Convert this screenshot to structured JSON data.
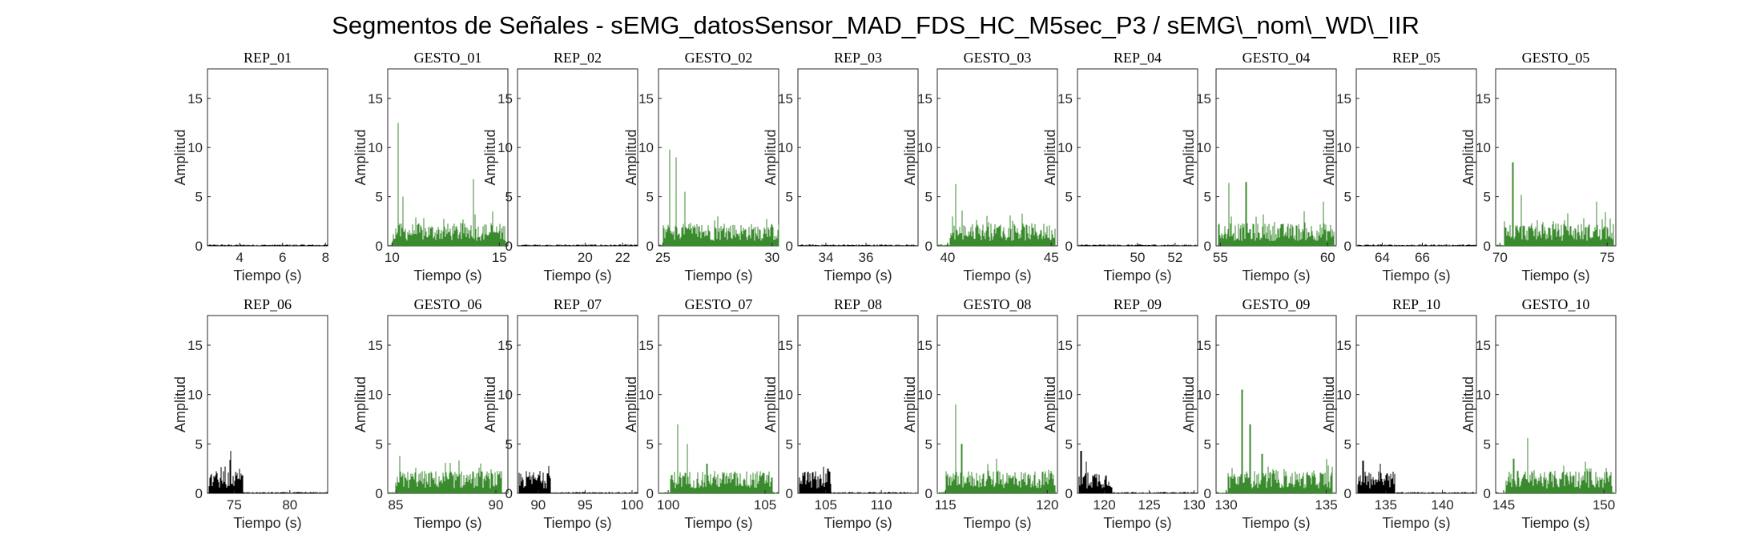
{
  "figure": {
    "title": "Segmentos de Señales - sEMG_datosSensor_MAD_FDS_HC_M5sec_P3 / sEMG\\_nom\\_WD\\_IIR"
  },
  "colors": {
    "gesture": "#3a8a2e",
    "rest": "#000000",
    "axis": "#262626"
  },
  "chart_data": [
    {
      "type": "bar",
      "title": "REP_01",
      "xlabel": "Tiempo (s)",
      "ylabel": "Amplitud",
      "xlim": [
        2.5,
        8.1
      ],
      "ylim": [
        0,
        18
      ],
      "xticks": [
        4,
        6,
        8
      ],
      "yticks": [
        0,
        5,
        10,
        15
      ],
      "color": "rest",
      "burst": null,
      "peaks": [],
      "active": false
    },
    {
      "type": "bar",
      "title": "GESTO_01",
      "xlabel": "Tiempo (s)",
      "ylabel": "Amplitud",
      "xlim": [
        9.8,
        15.4
      ],
      "ylim": [
        0,
        18
      ],
      "xticks": [
        10,
        15
      ],
      "yticks": [
        0,
        5,
        10,
        15
      ],
      "color": "gesture",
      "burst": [
        10.0,
        15.3
      ],
      "peaks": [
        [
          10.3,
          12.5
        ],
        [
          10.5,
          5.0
        ],
        [
          13.8,
          6.8
        ],
        [
          14.7,
          3.5
        ]
      ],
      "active": true
    },
    {
      "type": "bar",
      "title": "REP_02",
      "xlabel": "Tiempo (s)",
      "ylabel": "Amplitud",
      "xlim": [
        16.4,
        22.8
      ],
      "ylim": [
        0,
        18
      ],
      "xticks": [
        20,
        22
      ],
      "yticks": [
        0,
        5,
        10,
        15
      ],
      "color": "rest",
      "burst": null,
      "peaks": [],
      "active": false
    },
    {
      "type": "bar",
      "title": "GESTO_02",
      "xlabel": "Tiempo (s)",
      "ylabel": "Amplitud",
      "xlim": [
        24.8,
        30.3
      ],
      "ylim": [
        0,
        18
      ],
      "xticks": [
        25,
        30
      ],
      "yticks": [
        0,
        5,
        10,
        15
      ],
      "color": "gesture",
      "burst": [
        25.0,
        30.3
      ],
      "peaks": [
        [
          25.3,
          9.8
        ],
        [
          25.6,
          9.0
        ],
        [
          26.0,
          5.5
        ],
        [
          27.5,
          3.0
        ]
      ],
      "active": true
    },
    {
      "type": "bar",
      "title": "REP_03",
      "xlabel": "Tiempo (s)",
      "ylabel": "Amplitud",
      "xlim": [
        32.6,
        38.6
      ],
      "ylim": [
        0,
        18
      ],
      "xticks": [
        34,
        36
      ],
      "yticks": [
        0,
        5,
        10,
        15
      ],
      "color": "rest",
      "burst": null,
      "peaks": [],
      "active": false
    },
    {
      "type": "bar",
      "title": "GESTO_03",
      "xlabel": "Tiempo (s)",
      "ylabel": "Amplitud",
      "xlim": [
        39.5,
        45.3
      ],
      "ylim": [
        0,
        18
      ],
      "xticks": [
        40,
        45
      ],
      "yticks": [
        0,
        5,
        10,
        15
      ],
      "color": "gesture",
      "burst": [
        40.1,
        45.2
      ],
      "peaks": [
        [
          40.4,
          6.3
        ],
        [
          40.7,
          3.6
        ],
        [
          42.5,
          2.0
        ]
      ],
      "active": true
    },
    {
      "type": "bar",
      "title": "REP_04",
      "xlabel": "Tiempo (s)",
      "ylabel": "Amplitud",
      "xlim": [
        46.8,
        53.2
      ],
      "ylim": [
        0,
        18
      ],
      "xticks": [
        50,
        52
      ],
      "yticks": [
        0,
        5,
        10,
        15
      ],
      "color": "rest",
      "burst": null,
      "peaks": [],
      "active": false
    },
    {
      "type": "bar",
      "title": "GESTO_04",
      "xlabel": "Tiempo (s)",
      "ylabel": "Amplitud",
      "xlim": [
        54.8,
        60.4
      ],
      "ylim": [
        0,
        18
      ],
      "xticks": [
        55,
        60
      ],
      "yticks": [
        0,
        5,
        10,
        15
      ],
      "color": "gesture",
      "burst": [
        54.9,
        60.3
      ],
      "peaks": [
        [
          55.4,
          6.4
        ],
        [
          56.2,
          6.5
        ],
        [
          57.0,
          3.2
        ],
        [
          59.8,
          4.5
        ]
      ],
      "active": true
    },
    {
      "type": "bar",
      "title": "REP_05",
      "xlabel": "Tiempo (s)",
      "ylabel": "Amplitud",
      "xlim": [
        62.7,
        68.7
      ],
      "ylim": [
        0,
        18
      ],
      "xticks": [
        64,
        66
      ],
      "yticks": [
        0,
        5,
        10,
        15
      ],
      "color": "rest",
      "burst": null,
      "peaks": [],
      "active": false
    },
    {
      "type": "bar",
      "title": "GESTO_05",
      "xlabel": "Tiempo (s)",
      "ylabel": "Amplitud",
      "xlim": [
        69.8,
        75.4
      ],
      "ylim": [
        0,
        18
      ],
      "xticks": [
        70,
        75
      ],
      "yticks": [
        0,
        5,
        10,
        15
      ],
      "color": "gesture",
      "burst": [
        70.2,
        75.3
      ],
      "peaks": [
        [
          70.6,
          8.5
        ],
        [
          71.0,
          5.2
        ],
        [
          74.5,
          4.5
        ],
        [
          72.5,
          2.5
        ]
      ],
      "active": true
    },
    {
      "type": "bar",
      "title": "REP_06",
      "xlabel": "Tiempo (s)",
      "ylabel": "Amplitud",
      "xlim": [
        72.6,
        83.4
      ],
      "ylim": [
        0,
        18
      ],
      "xticks": [
        75,
        80
      ],
      "yticks": [
        0,
        5,
        10,
        15
      ],
      "color": "rest",
      "burst": [
        72.7,
        75.8
      ],
      "peaks": [
        [
          74.7,
          4.3
        ],
        [
          75.5,
          2.5
        ]
      ],
      "active": true
    },
    {
      "type": "bar",
      "title": "GESTO_06",
      "xlabel": "Tiempo (s)",
      "ylabel": "Amplitud",
      "xlim": [
        84.6,
        90.6
      ],
      "ylim": [
        0,
        18
      ],
      "xticks": [
        85,
        90
      ],
      "yticks": [
        0,
        5,
        10,
        15
      ],
      "color": "gesture",
      "burst": [
        85.0,
        90.3
      ],
      "peaks": [
        [
          85.2,
          3.8
        ],
        [
          86.0,
          2.6
        ]
      ],
      "active": true
    },
    {
      "type": "bar",
      "title": "REP_07",
      "xlabel": "Tiempo (s)",
      "ylabel": "Amplitud",
      "xlim": [
        87.8,
        100.6
      ],
      "ylim": [
        0,
        18
      ],
      "xticks": [
        90,
        95,
        100
      ],
      "yticks": [
        0,
        5,
        10,
        15
      ],
      "color": "rest",
      "burst": [
        87.9,
        91.3
      ],
      "peaks": [
        [
          90.5,
          2.1
        ],
        [
          91.0,
          2.0
        ]
      ],
      "active": true
    },
    {
      "type": "bar",
      "title": "GESTO_07",
      "xlabel": "Tiempo (s)",
      "ylabel": "Amplitud",
      "xlim": [
        99.5,
        105.7
      ],
      "ylim": [
        0,
        18
      ],
      "xticks": [
        100,
        105
      ],
      "yticks": [
        0,
        5,
        10,
        15
      ],
      "color": "gesture",
      "burst": [
        100.1,
        105.4
      ],
      "peaks": [
        [
          100.5,
          7.0
        ],
        [
          101.0,
          5.0
        ],
        [
          102.0,
          3.0
        ]
      ],
      "active": true
    },
    {
      "type": "bar",
      "title": "REP_08",
      "xlabel": "Tiempo (s)",
      "ylabel": "Amplitud",
      "xlim": [
        102.5,
        113.3
      ],
      "ylim": [
        0,
        18
      ],
      "xticks": [
        105,
        110
      ],
      "yticks": [
        0,
        5,
        10,
        15
      ],
      "color": "rest",
      "burst": [
        102.6,
        105.5
      ],
      "peaks": [
        [
          104.8,
          2.7
        ],
        [
          105.2,
          2.5
        ]
      ],
      "active": true
    },
    {
      "type": "bar",
      "title": "GESTO_08",
      "xlabel": "Tiempo (s)",
      "ylabel": "Amplitud",
      "xlim": [
        114.6,
        120.5
      ],
      "ylim": [
        0,
        18
      ],
      "xticks": [
        115,
        120
      ],
      "yticks": [
        0,
        5,
        10,
        15
      ],
      "color": "gesture",
      "burst": [
        115.0,
        120.4
      ],
      "peaks": [
        [
          115.5,
          9.0
        ],
        [
          115.8,
          5.0
        ],
        [
          117.5,
          3.5
        ]
      ],
      "active": true
    },
    {
      "type": "bar",
      "title": "REP_09",
      "xlabel": "Tiempo (s)",
      "ylabel": "Amplitud",
      "xlim": [
        117.0,
        130.4
      ],
      "ylim": [
        0,
        18
      ],
      "xticks": [
        120,
        125,
        130
      ],
      "yticks": [
        0,
        5,
        10,
        15
      ],
      "color": "rest",
      "burst": [
        117.1,
        120.9
      ],
      "peaks": [
        [
          117.4,
          4.3
        ],
        [
          118.0,
          3.2
        ]
      ],
      "active": true
    },
    {
      "type": "bar",
      "title": "GESTO_09",
      "xlabel": "Tiempo (s)",
      "ylabel": "Amplitud",
      "xlim": [
        129.5,
        135.5
      ],
      "ylim": [
        0,
        18
      ],
      "xticks": [
        130,
        135
      ],
      "yticks": [
        0,
        5,
        10,
        15
      ],
      "color": "gesture",
      "burst": [
        130.1,
        135.3
      ],
      "peaks": [
        [
          130.8,
          10.5
        ],
        [
          131.2,
          7.0
        ],
        [
          131.8,
          4.0
        ]
      ],
      "active": true
    },
    {
      "type": "bar",
      "title": "REP_10",
      "xlabel": "Tiempo (s)",
      "ylabel": "Amplitud",
      "xlim": [
        132.4,
        143.0
      ],
      "ylim": [
        0,
        18
      ],
      "xticks": [
        135,
        140
      ],
      "yticks": [
        0,
        5,
        10,
        15
      ],
      "color": "rest",
      "burst": [
        132.5,
        135.8
      ],
      "peaks": [
        [
          133.0,
          3.3
        ],
        [
          134.5,
          3.0
        ]
      ],
      "active": true
    },
    {
      "type": "bar",
      "title": "GESTO_10",
      "xlabel": "Tiempo (s)",
      "ylabel": "Amplitud",
      "xlim": [
        144.6,
        150.6
      ],
      "ylim": [
        0,
        18
      ],
      "xticks": [
        145,
        150
      ],
      "yticks": [
        0,
        5,
        10,
        15
      ],
      "color": "gesture",
      "burst": [
        145.1,
        150.4
      ],
      "peaks": [
        [
          146.2,
          5.6
        ],
        [
          145.5,
          3.5
        ],
        [
          148.0,
          2.8
        ]
      ],
      "active": true
    }
  ]
}
